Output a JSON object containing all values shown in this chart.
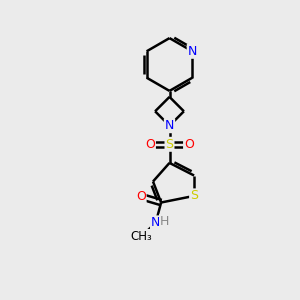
{
  "bg_color": "#ebebeb",
  "bond_color": "#000000",
  "bond_width": 1.8,
  "atom_colors": {
    "N": "#0000ff",
    "S": "#cccc00",
    "O": "#ff0000",
    "H": "#888888",
    "C": "#000000"
  },
  "figsize": [
    3.0,
    3.0
  ],
  "dpi": 100
}
